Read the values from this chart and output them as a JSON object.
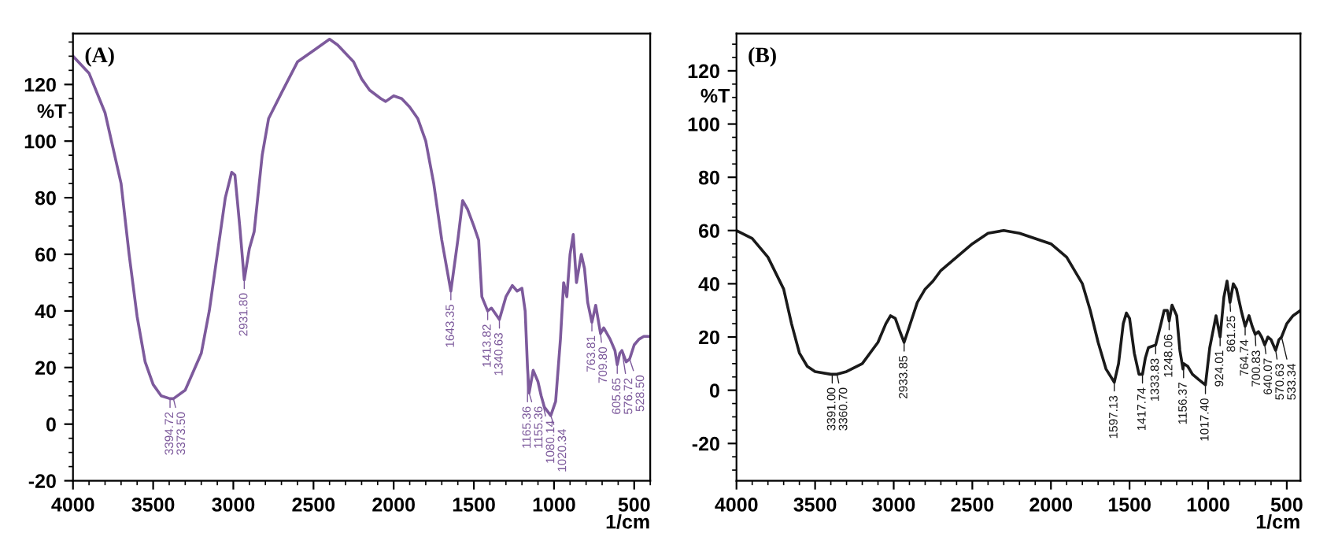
{
  "chart_data": [
    {
      "type": "line",
      "title": "(A)",
      "xlabel": "1/cm",
      "ylabel": "%T",
      "xlim": [
        4000,
        400
      ],
      "ylim": [
        -20,
        138
      ],
      "xticks": [
        4000,
        3500,
        3000,
        2500,
        2000,
        1500,
        1000,
        500
      ],
      "yticks": [
        -20,
        0,
        20,
        40,
        60,
        80,
        100,
        120
      ],
      "grid": false,
      "marker": "none",
      "line_style": "solid",
      "series": [
        {
          "color": "#7d5a9c",
          "x": [
            4000,
            3900,
            3800,
            3700,
            3650,
            3600,
            3550,
            3500,
            3450,
            3394.72,
            3373.5,
            3300,
            3200,
            3150,
            3100,
            3050,
            3010,
            2990,
            2960,
            2931.8,
            2900,
            2870,
            2820,
            2780,
            2700,
            2600,
            2500,
            2450,
            2400,
            2350,
            2250,
            2200,
            2150,
            2080,
            2050,
            2000,
            1950,
            1900,
            1850,
            1800,
            1750,
            1700,
            1643.35,
            1600,
            1570,
            1540,
            1500,
            1470,
            1450,
            1413.82,
            1390,
            1340.63,
            1300,
            1260,
            1230,
            1200,
            1180,
            1165.36,
            1155.36,
            1130,
            1100,
            1080.14,
            1060,
            1020.34,
            990,
            960,
            940,
            920,
            900,
            880,
            860,
            830,
            810,
            790,
            763.81,
            740,
            709.8,
            690,
            650,
            620,
            605.65,
            590,
            576.72,
            550,
            528.5,
            500,
            470,
            440,
            400
          ],
          "values": [
            130,
            124,
            110,
            85,
            60,
            38,
            22,
            14,
            10,
            9,
            9,
            12,
            25,
            40,
            60,
            80,
            89,
            88,
            70,
            51,
            62,
            68,
            95,
            108,
            117,
            128,
            132,
            134,
            136,
            134,
            128,
            122,
            118,
            115,
            114,
            116,
            115,
            112,
            108,
            100,
            85,
            65,
            47,
            65,
            79,
            76,
            70,
            65,
            45,
            40,
            41,
            37,
            45,
            49,
            47,
            48,
            40,
            20,
            11,
            19,
            15,
            10,
            6,
            3,
            8,
            30,
            50,
            45,
            60,
            67,
            50,
            60,
            55,
            43,
            36,
            42,
            32,
            34,
            30,
            26,
            21,
            25,
            26,
            22,
            23,
            28,
            30,
            31,
            31
          ]
        }
      ],
      "annotations": [
        {
          "text": "3394.72",
          "x": 3394.72,
          "y": 9
        },
        {
          "text": "3373.50",
          "x": 3373.5,
          "y": 9
        },
        {
          "text": "2931.80",
          "x": 2931.8,
          "y": 51
        },
        {
          "text": "1643.35",
          "x": 1643.35,
          "y": 47
        },
        {
          "text": "1413.82",
          "x": 1413.82,
          "y": 40
        },
        {
          "text": "1340.63",
          "x": 1340.63,
          "y": 37
        },
        {
          "text": "1165.36",
          "x": 1165.36,
          "y": 20
        },
        {
          "text": "1155.36",
          "x": 1155.36,
          "y": 11
        },
        {
          "text": "1080.14",
          "x": 1080.14,
          "y": 10
        },
        {
          "text": "1020.34",
          "x": 1020.34,
          "y": 3
        },
        {
          "text": "763.81",
          "x": 763.81,
          "y": 36
        },
        {
          "text": "709.80",
          "x": 709.8,
          "y": 32
        },
        {
          "text": "605.65",
          "x": 605.65,
          "y": 21
        },
        {
          "text": "576.72",
          "x": 576.72,
          "y": 26
        },
        {
          "text": "528.50",
          "x": 528.5,
          "y": 23
        }
      ]
    },
    {
      "type": "line",
      "title": "(B)",
      "xlabel": "1/cm",
      "ylabel": "%T",
      "xlim": [
        4000,
        413
      ],
      "ylim": [
        -34,
        134
      ],
      "xticks": [
        4000,
        3500,
        3000,
        2500,
        2000,
        1500,
        1000,
        500
      ],
      "yticks": [
        -20,
        0,
        20,
        40,
        60,
        80,
        100,
        120
      ],
      "grid": false,
      "marker": "none",
      "line_style": "solid",
      "series": [
        {
          "color": "#1a1a1a",
          "x": [
            4000,
            3900,
            3800,
            3700,
            3650,
            3600,
            3550,
            3500,
            3400,
            3391,
            3360.7,
            3300,
            3200,
            3100,
            3050,
            3020,
            2990,
            2960,
            2933.85,
            2900,
            2850,
            2800,
            2750,
            2700,
            2600,
            2500,
            2400,
            2300,
            2200,
            2100,
            2000,
            1900,
            1800,
            1750,
            1700,
            1650,
            1597.13,
            1570,
            1540,
            1520,
            1500,
            1470,
            1440,
            1417.74,
            1400,
            1380,
            1333.83,
            1300,
            1280,
            1260,
            1248.06,
            1230,
            1200,
            1180,
            1160,
            1156.37,
            1130,
            1100,
            1060,
            1017.4,
            990,
            970,
            950,
            924.01,
            900,
            880,
            861.25,
            840,
            820,
            790,
            764.74,
            740,
            720,
            700.83,
            680,
            660,
            640.07,
            620,
            600,
            570.63,
            550,
            533.34,
            500,
            460,
            413
          ],
          "values": [
            60,
            57,
            50,
            38,
            25,
            14,
            9,
            7,
            6,
            6,
            6,
            7,
            10,
            18,
            25,
            28,
            27,
            22,
            18,
            24,
            33,
            38,
            41,
            45,
            50,
            55,
            59,
            60,
            59,
            57,
            55,
            50,
            40,
            30,
            18,
            8,
            3,
            10,
            25,
            29,
            27,
            14,
            6,
            6,
            12,
            16,
            17,
            25,
            30,
            30,
            26,
            32,
            28,
            15,
            8,
            10,
            9,
            6,
            4,
            2,
            16,
            22,
            28,
            20,
            35,
            41,
            33,
            40,
            38,
            30,
            24,
            28,
            24,
            21,
            22,
            20,
            17,
            20,
            19,
            15,
            19,
            20,
            25,
            28,
            30
          ]
        }
      ],
      "annotations": [
        {
          "text": "3391.00",
          "x": 3391,
          "y": 6
        },
        {
          "text": "3360.70",
          "x": 3360.7,
          "y": 6
        },
        {
          "text": "2933.85",
          "x": 2933.85,
          "y": 18
        },
        {
          "text": "1597.13",
          "x": 1597.13,
          "y": 3
        },
        {
          "text": "1417.74",
          "x": 1417.74,
          "y": 6
        },
        {
          "text": "1333.83",
          "x": 1333.83,
          "y": 17
        },
        {
          "text": "1248.06",
          "x": 1248.06,
          "y": 26
        },
        {
          "text": "1156.37",
          "x": 1156.37,
          "y": 10
        },
        {
          "text": "1017.40",
          "x": 1017.4,
          "y": 2
        },
        {
          "text": "924.01",
          "x": 924.01,
          "y": 20
        },
        {
          "text": "861.25",
          "x": 861.25,
          "y": 33
        },
        {
          "text": "764.74",
          "x": 764.74,
          "y": 24
        },
        {
          "text": "700.83",
          "x": 700.83,
          "y": 21
        },
        {
          "text": "640.07",
          "x": 640.07,
          "y": 17
        },
        {
          "text": "570.63",
          "x": 570.63,
          "y": 15
        },
        {
          "text": "533.34",
          "x": 533.34,
          "y": 20
        }
      ]
    }
  ]
}
